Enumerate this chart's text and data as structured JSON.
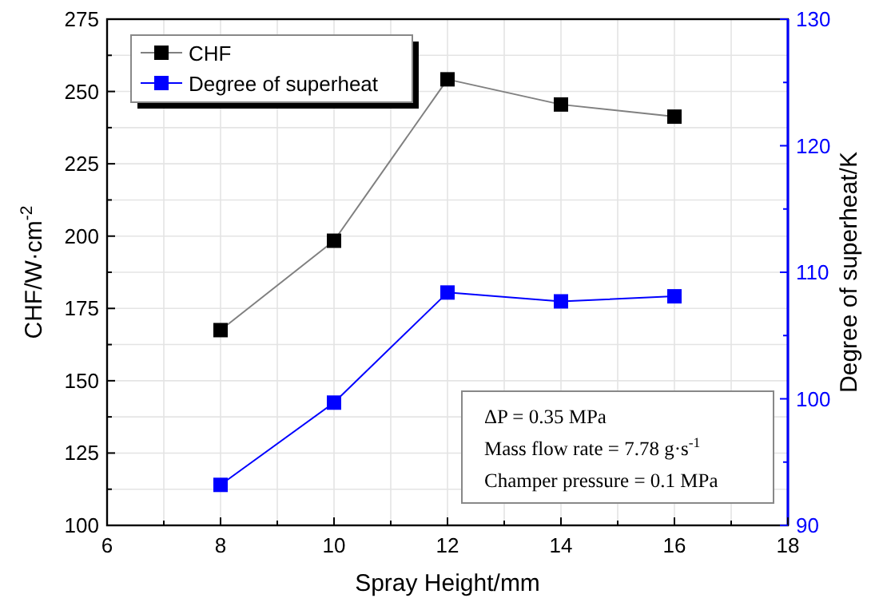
{
  "chart_data": {
    "type": "line",
    "xlabel": "Spray Height/mm",
    "ylabel": "CHF/W·cm$^{-2}$",
    "y2label": "Degree of superheat/K",
    "x": [
      8,
      10,
      12,
      14,
      16
    ],
    "xlim": [
      6,
      18
    ],
    "xticks": [
      6,
      {
        "value": 7,
        "label": null
      },
      8,
      {
        "value": 9,
        "label": null
      },
      10,
      {
        "value": 11,
        "label": null
      },
      12,
      {
        "value": 13,
        "label": null
      },
      14,
      {
        "value": 15,
        "label": null
      },
      16,
      {
        "value": 17,
        "label": null
      },
      18
    ],
    "ylim": [
      100,
      275
    ],
    "yticks": [
      100,
      {
        "value": 112.5,
        "label": null
      },
      125,
      {
        "value": 137.5,
        "label": null
      },
      150,
      {
        "value": 162.5,
        "label": null
      },
      175,
      {
        "value": 187.5,
        "label": null
      },
      200,
      {
        "value": 212.5,
        "label": null
      },
      225,
      {
        "value": 237.5,
        "label": null
      },
      250,
      {
        "value": 262.5,
        "label": null
      },
      275
    ],
    "y2lim": [
      90,
      130
    ],
    "y2ticks": [
      90,
      {
        "value": 95,
        "label": null
      },
      100,
      {
        "value": 105,
        "label": null
      },
      110,
      {
        "value": 115,
        "label": null
      },
      120,
      {
        "value": 125,
        "label": null
      },
      130
    ],
    "series": [
      {
        "name": "CHF",
        "color": "#000000",
        "values": [
          167.5,
          198.4,
          254.2,
          245.5,
          241.3
        ]
      },
      {
        "name": "Degree of superheat",
        "color": "#0000ff",
        "axis": "y2",
        "values": [
          93.2,
          99.7,
          108.4,
          107.7,
          108.1
        ]
      }
    ],
    "grid": true,
    "legend": "top left",
    "marker": "square",
    "line_style": "solid",
    "annotations": [
      "ΔP = 0.35 MPa",
      "Mass flow rate = 7.78 g·s$^{-1}$",
      "Champer pressure = 0.1 MPa"
    ]
  }
}
